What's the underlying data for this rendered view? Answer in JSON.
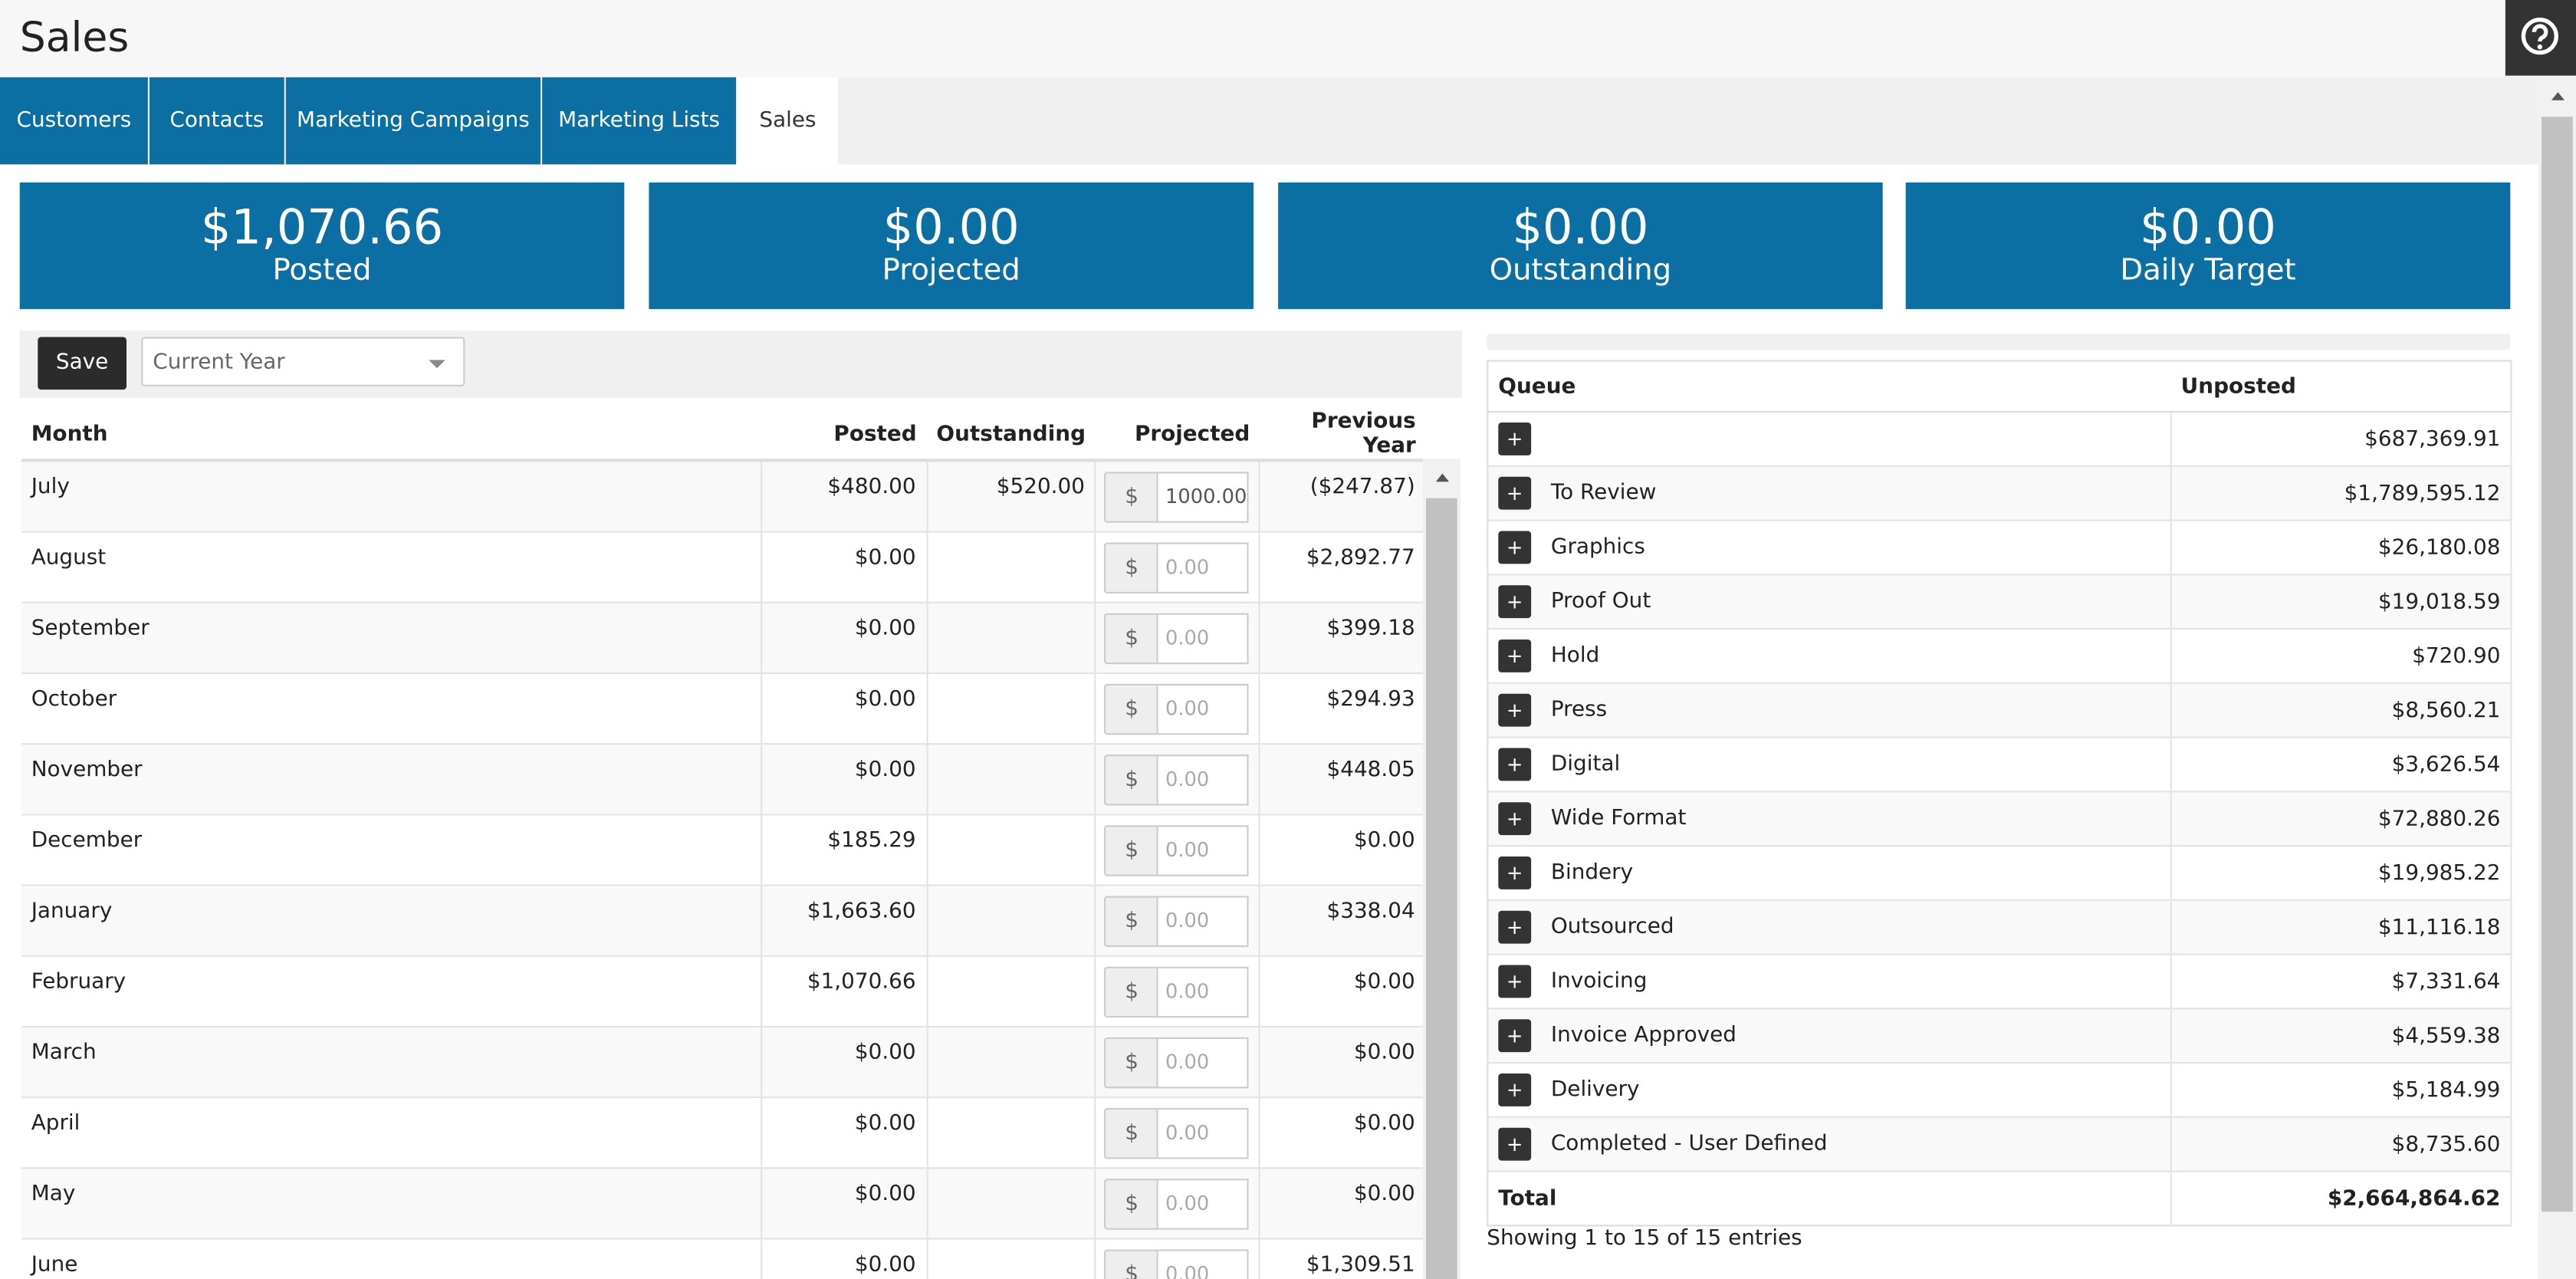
{
  "header": {
    "title": "Sales"
  },
  "tabs": [
    "Customers",
    "Contacts",
    "Marketing Campaigns",
    "Marketing Lists",
    "Sales"
  ],
  "stats": [
    {
      "value": "$1,070.66",
      "label": "Posted"
    },
    {
      "value": "$0.00",
      "label": "Projected"
    },
    {
      "value": "$0.00",
      "label": "Outstanding"
    },
    {
      "value": "$0.00",
      "label": "Daily Target"
    }
  ],
  "toolbar": {
    "save": "Save",
    "period": "Current Year"
  },
  "months": {
    "columns": [
      "Month",
      "Posted",
      "Outstanding",
      "Projected",
      "Previous Year"
    ],
    "currency_symbol": "$",
    "rows": [
      {
        "month": "July",
        "posted": "$480.00",
        "outstanding": "$520.00",
        "projected": "1000.00",
        "previous_year": "($247.87)"
      },
      {
        "month": "August",
        "posted": "$0.00",
        "outstanding": null,
        "projected_placeholder": "0.00",
        "previous_year": "$2,892.77"
      },
      {
        "month": "September",
        "posted": "$0.00",
        "outstanding": null,
        "projected_placeholder": "0.00",
        "previous_year": "$399.18"
      },
      {
        "month": "October",
        "posted": "$0.00",
        "outstanding": null,
        "projected_placeholder": "0.00",
        "previous_year": "$294.93"
      },
      {
        "month": "November",
        "posted": "$0.00",
        "outstanding": null,
        "projected_placeholder": "0.00",
        "previous_year": "$448.05"
      },
      {
        "month": "December",
        "posted": "$185.29",
        "outstanding": null,
        "projected_placeholder": "0.00",
        "previous_year": "$0.00"
      },
      {
        "month": "January",
        "posted": "$1,663.60",
        "outstanding": null,
        "projected_placeholder": "0.00",
        "previous_year": "$338.04"
      },
      {
        "month": "February",
        "posted": "$1,070.66",
        "outstanding": null,
        "projected_placeholder": "0.00",
        "previous_year": "$0.00"
      },
      {
        "month": "March",
        "posted": "$0.00",
        "outstanding": null,
        "projected_placeholder": "0.00",
        "previous_year": "$0.00"
      },
      {
        "month": "April",
        "posted": "$0.00",
        "outstanding": null,
        "projected_placeholder": "0.00",
        "previous_year": "$0.00"
      },
      {
        "month": "May",
        "posted": "$0.00",
        "outstanding": null,
        "projected_placeholder": "0.00",
        "previous_year": "$0.00"
      },
      {
        "month": "June",
        "posted": "$0.00",
        "outstanding": null,
        "projected_placeholder": "0.00",
        "previous_year": "$1,309.51"
      }
    ]
  },
  "queue": {
    "columns": [
      "Queue",
      "Unposted"
    ],
    "expand_button": "+",
    "rows": [
      {
        "name": null,
        "unposted": "$687,369.91"
      },
      {
        "name": "To Review",
        "unposted": "$1,789,595.12"
      },
      {
        "name": "Graphics",
        "unposted": "$26,180.08"
      },
      {
        "name": "Proof Out",
        "unposted": "$19,018.59"
      },
      {
        "name": "Hold",
        "unposted": "$720.90"
      },
      {
        "name": "Press",
        "unposted": "$8,560.21"
      },
      {
        "name": "Digital",
        "unposted": "$3,626.54"
      },
      {
        "name": "Wide Format",
        "unposted": "$72,880.26"
      },
      {
        "name": "Bindery",
        "unposted": "$19,985.22"
      },
      {
        "name": "Outsourced",
        "unposted": "$11,116.18"
      },
      {
        "name": "Invoicing",
        "unposted": "$7,331.64"
      },
      {
        "name": "Invoice Approved",
        "unposted": "$4,559.38"
      },
      {
        "name": "Delivery",
        "unposted": "$5,184.99"
      },
      {
        "name": "Completed - User Defined",
        "unposted": "$8,735.60"
      }
    ],
    "total": {
      "label": "Total",
      "value": "$2,664,864.62"
    },
    "info": "Showing 1 to 15 of 15 entries"
  }
}
